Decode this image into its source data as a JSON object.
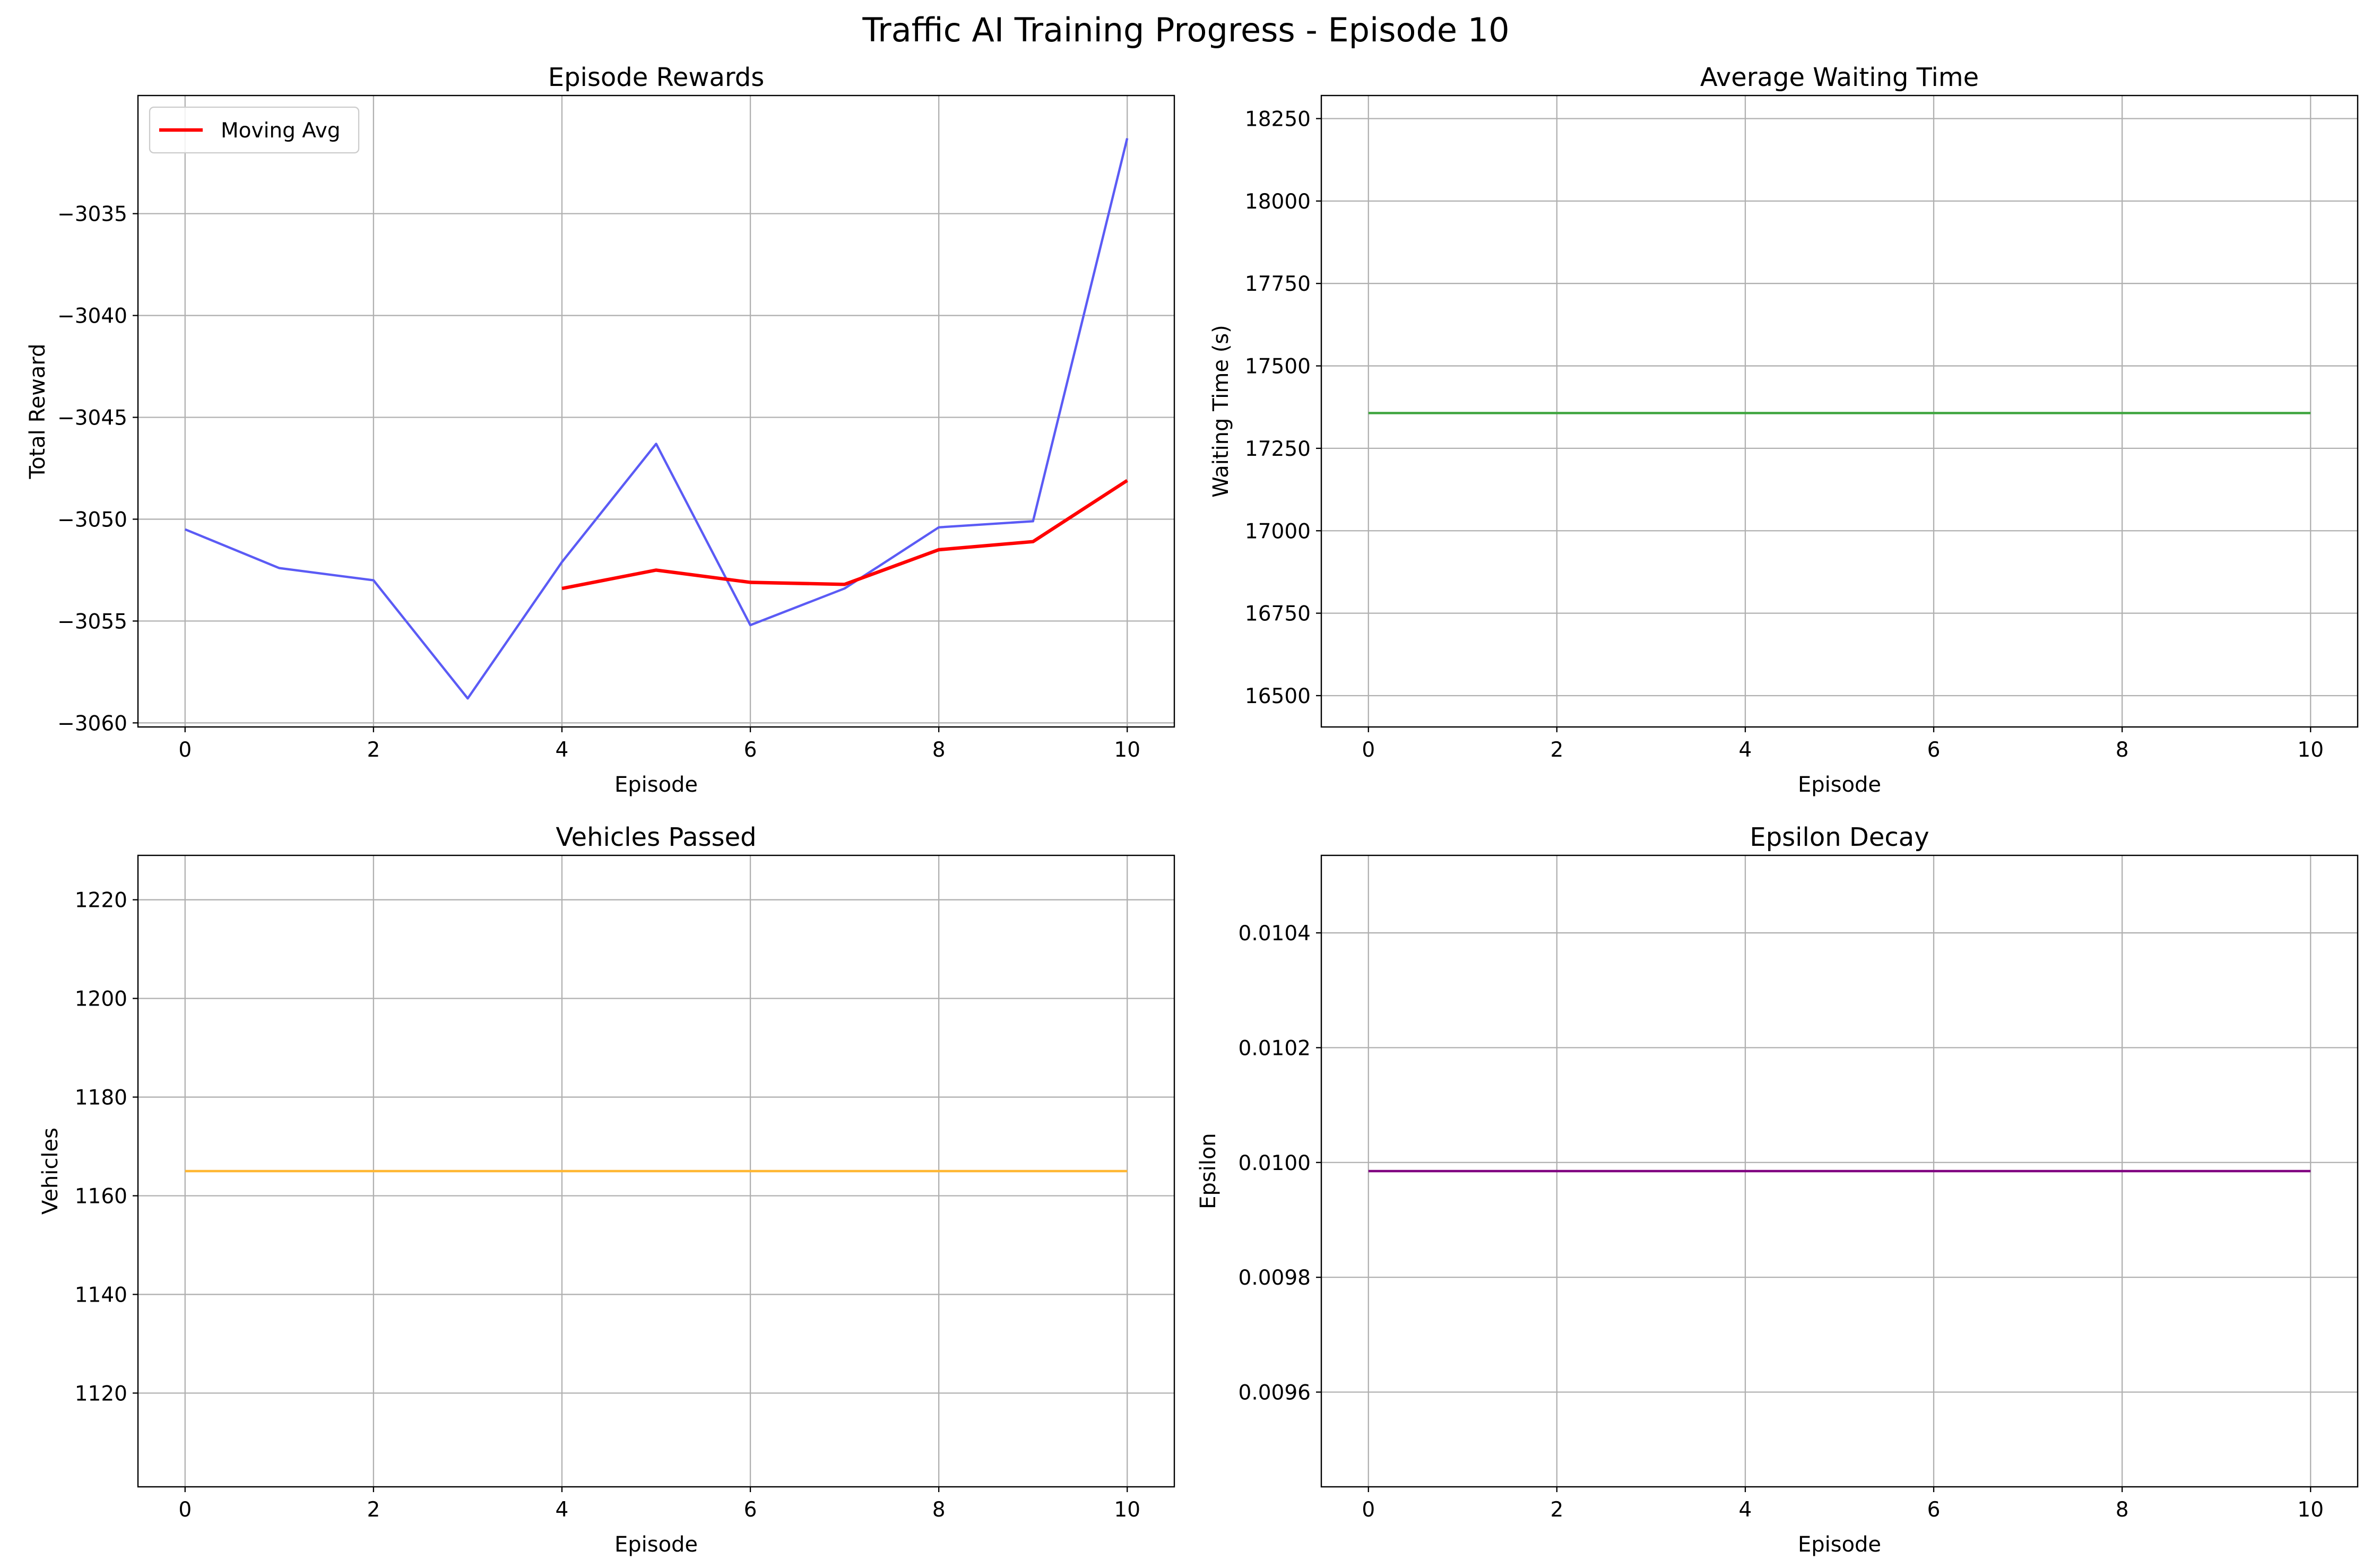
{
  "figure": {
    "suptitle": "Traffic AI Training Progress - Episode 10"
  },
  "chart_data": [
    {
      "type": "line",
      "title": "Episode Rewards",
      "xlabel": "Episode",
      "ylabel": "Total Reward",
      "xlim": [
        -0.5,
        10.5
      ],
      "ylim": [
        -3060.2,
        -3029.2
      ],
      "xticks": [
        0,
        2,
        4,
        6,
        8,
        10
      ],
      "yticks": [
        -3060,
        -3055,
        -3050,
        -3045,
        -3040,
        -3035
      ],
      "grid": true,
      "legend": {
        "placement": "upper-left",
        "entries": [
          "Moving Avg"
        ]
      },
      "series": [
        {
          "color": "#5b5bf5",
          "width": 1.5,
          "x": [
            0,
            1,
            2,
            3,
            4,
            5,
            6,
            7,
            8,
            9,
            10
          ],
          "y": [
            -3050.5,
            -3052.4,
            -3053.0,
            -3058.8,
            -3052.1,
            -3046.3,
            -3055.2,
            -3053.4,
            -3050.4,
            -3050.1,
            -3031.3
          ]
        },
        {
          "name": "Moving Avg",
          "color": "#ff0000",
          "width": 2.2,
          "x": [
            4,
            5,
            6,
            7,
            8,
            9,
            10
          ],
          "y": [
            -3053.4,
            -3052.5,
            -3053.1,
            -3053.2,
            -3051.5,
            -3051.1,
            -3048.1
          ]
        }
      ]
    },
    {
      "type": "line",
      "title": "Average Waiting Time",
      "xlabel": "Episode",
      "ylabel": "Waiting Time (s)",
      "xlim": [
        -0.5,
        10.5
      ],
      "ylim": [
        16405,
        18320
      ],
      "xticks": [
        0,
        2,
        4,
        6,
        8,
        10
      ],
      "yticks": [
        16500,
        16750,
        17000,
        17250,
        17500,
        17750,
        18000,
        18250
      ],
      "grid": true,
      "series": [
        {
          "color": "#3ca43c",
          "width": 1.5,
          "x": [
            0,
            1,
            2,
            3,
            4,
            5,
            6,
            7,
            8,
            9,
            10
          ],
          "y": [
            17357,
            17357,
            17357,
            17357,
            17357,
            17357,
            17357,
            17357,
            17357,
            17357,
            17357
          ]
        }
      ]
    },
    {
      "type": "line",
      "title": "Vehicles Passed",
      "xlabel": "Episode",
      "ylabel": "Vehicles",
      "xlim": [
        -0.5,
        10.5
      ],
      "ylim": [
        1101,
        1229
      ],
      "xticks": [
        0,
        2,
        4,
        6,
        8,
        10
      ],
      "yticks": [
        1120,
        1140,
        1160,
        1180,
        1200,
        1220
      ],
      "grid": true,
      "series": [
        {
          "color": "#ffb733",
          "width": 1.5,
          "x": [
            0,
            1,
            2,
            3,
            4,
            5,
            6,
            7,
            8,
            9,
            10
          ],
          "y": [
            1165,
            1165,
            1165,
            1165,
            1165,
            1165,
            1165,
            1165,
            1165,
            1165,
            1165
          ]
        }
      ]
    },
    {
      "type": "line",
      "title": "Epsilon Decay",
      "xlabel": "Episode",
      "ylabel": "Epsilon",
      "xlim": [
        -0.5,
        10.5
      ],
      "ylim": [
        0.009435,
        0.010535
      ],
      "xticks": [
        0,
        2,
        4,
        6,
        8,
        10
      ],
      "ytick_labels": [
        "0.0096",
        "0.0098",
        "0.0100",
        "0.0102",
        "0.0104"
      ],
      "yticks": [
        0.0096,
        0.0098,
        0.01,
        0.0102,
        0.0104
      ],
      "grid": true,
      "series": [
        {
          "color": "#800080",
          "width": 1.5,
          "x": [
            0,
            1,
            2,
            3,
            4,
            5,
            6,
            7,
            8,
            9,
            10
          ],
          "y": [
            0.009985,
            0.009985,
            0.009985,
            0.009985,
            0.009985,
            0.009985,
            0.009985,
            0.009985,
            0.009985,
            0.009985,
            0.009985
          ]
        }
      ]
    }
  ]
}
